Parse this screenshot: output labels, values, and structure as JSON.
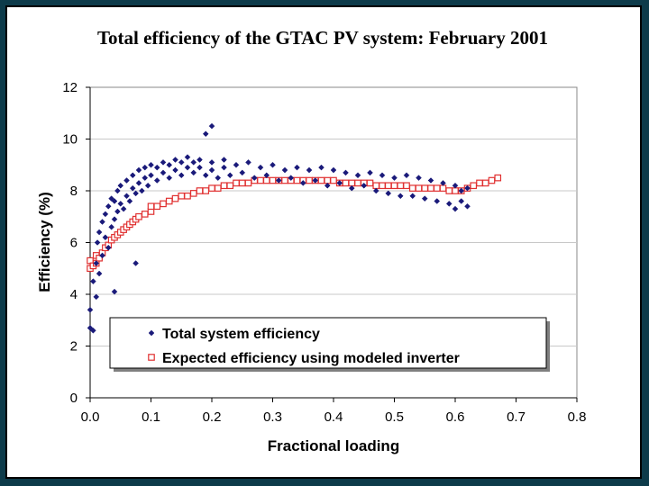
{
  "slide": {
    "title": "Total efficiency of the GTAC PV system:  February 2001"
  },
  "colors": {
    "background": "#0d3b4a",
    "series_total": "#1a1a7a",
    "series_expected_fill": "#ffffff",
    "series_expected_edge": "#e03030",
    "grid": "#c8c8c8"
  },
  "chart_data": {
    "type": "scatter",
    "title": "Total efficiency of the GTAC PV system:  February 2001",
    "xlabel": "Fractional loading",
    "ylabel": "Efficiency (%)",
    "xlim": [
      0.0,
      0.8
    ],
    "ylim": [
      0,
      12
    ],
    "xticks": [
      0.0,
      0.1,
      0.2,
      0.3,
      0.4,
      0.5,
      0.6,
      0.7,
      0.8
    ],
    "yticks": [
      0,
      2,
      4,
      6,
      8,
      10,
      12
    ],
    "xtick_labels": [
      "0.0",
      "0.1",
      "0.2",
      "0.3",
      "0.4",
      "0.5",
      "0.6",
      "0.7",
      "0.8"
    ],
    "ytick_labels": [
      "0",
      "2",
      "4",
      "6",
      "8",
      "10",
      "12"
    ],
    "grid": "horizontal",
    "legend_position": "bottom inside plot",
    "series": [
      {
        "name": "Total system efficiency",
        "marker": "diamond",
        "color": "#1a1a7a",
        "points": [
          [
            0.0,
            2.7
          ],
          [
            0.0,
            3.4
          ],
          [
            0.005,
            2.6
          ],
          [
            0.005,
            4.5
          ],
          [
            0.01,
            3.9
          ],
          [
            0.01,
            5.2
          ],
          [
            0.012,
            6.0
          ],
          [
            0.015,
            4.8
          ],
          [
            0.015,
            6.4
          ],
          [
            0.02,
            5.5
          ],
          [
            0.02,
            6.8
          ],
          [
            0.025,
            6.2
          ],
          [
            0.025,
            7.1
          ],
          [
            0.03,
            5.8
          ],
          [
            0.03,
            7.4
          ],
          [
            0.035,
            6.6
          ],
          [
            0.035,
            7.7
          ],
          [
            0.04,
            6.9
          ],
          [
            0.04,
            7.6
          ],
          [
            0.04,
            4.1
          ],
          [
            0.045,
            7.2
          ],
          [
            0.045,
            8.0
          ],
          [
            0.05,
            7.5
          ],
          [
            0.05,
            8.2
          ],
          [
            0.055,
            7.3
          ],
          [
            0.06,
            7.8
          ],
          [
            0.06,
            8.4
          ],
          [
            0.065,
            7.6
          ],
          [
            0.07,
            8.1
          ],
          [
            0.07,
            8.6
          ],
          [
            0.075,
            5.2
          ],
          [
            0.075,
            7.9
          ],
          [
            0.08,
            8.3
          ],
          [
            0.08,
            8.8
          ],
          [
            0.085,
            8.0
          ],
          [
            0.09,
            8.5
          ],
          [
            0.09,
            8.9
          ],
          [
            0.095,
            8.2
          ],
          [
            0.1,
            8.6
          ],
          [
            0.1,
            9.0
          ],
          [
            0.11,
            8.4
          ],
          [
            0.11,
            8.9
          ],
          [
            0.12,
            8.7
          ],
          [
            0.12,
            9.1
          ],
          [
            0.13,
            8.5
          ],
          [
            0.13,
            9.0
          ],
          [
            0.14,
            8.8
          ],
          [
            0.14,
            9.2
          ],
          [
            0.15,
            8.6
          ],
          [
            0.15,
            9.1
          ],
          [
            0.16,
            8.9
          ],
          [
            0.16,
            9.3
          ],
          [
            0.17,
            8.7
          ],
          [
            0.17,
            9.1
          ],
          [
            0.18,
            8.9
          ],
          [
            0.18,
            9.2
          ],
          [
            0.19,
            8.6
          ],
          [
            0.19,
            10.2
          ],
          [
            0.2,
            8.8
          ],
          [
            0.2,
            9.1
          ],
          [
            0.2,
            10.5
          ],
          [
            0.21,
            8.5
          ],
          [
            0.22,
            8.9
          ],
          [
            0.22,
            9.2
          ],
          [
            0.23,
            8.6
          ],
          [
            0.24,
            9.0
          ],
          [
            0.25,
            8.7
          ],
          [
            0.26,
            9.1
          ],
          [
            0.27,
            8.5
          ],
          [
            0.28,
            8.9
          ],
          [
            0.29,
            8.6
          ],
          [
            0.3,
            9.0
          ],
          [
            0.31,
            8.4
          ],
          [
            0.32,
            8.8
          ],
          [
            0.33,
            8.5
          ],
          [
            0.34,
            8.9
          ],
          [
            0.35,
            8.3
          ],
          [
            0.36,
            8.8
          ],
          [
            0.37,
            8.4
          ],
          [
            0.38,
            8.9
          ],
          [
            0.39,
            8.2
          ],
          [
            0.4,
            8.8
          ],
          [
            0.41,
            8.3
          ],
          [
            0.42,
            8.7
          ],
          [
            0.43,
            8.1
          ],
          [
            0.44,
            8.6
          ],
          [
            0.45,
            8.2
          ],
          [
            0.46,
            8.7
          ],
          [
            0.47,
            8.0
          ],
          [
            0.48,
            8.6
          ],
          [
            0.49,
            7.9
          ],
          [
            0.5,
            8.5
          ],
          [
            0.51,
            7.8
          ],
          [
            0.52,
            8.6
          ],
          [
            0.53,
            7.8
          ],
          [
            0.54,
            8.5
          ],
          [
            0.55,
            7.7
          ],
          [
            0.56,
            8.4
          ],
          [
            0.57,
            7.6
          ],
          [
            0.58,
            8.3
          ],
          [
            0.59,
            7.5
          ],
          [
            0.6,
            8.2
          ],
          [
            0.6,
            7.3
          ],
          [
            0.61,
            7.6
          ],
          [
            0.61,
            8.0
          ],
          [
            0.62,
            7.4
          ],
          [
            0.62,
            8.1
          ]
        ]
      },
      {
        "name": "Expected efficiency using modeled inverter",
        "marker": "open-square",
        "color": "#e03030",
        "points": [
          [
            0.0,
            5.0
          ],
          [
            0.0,
            5.3
          ],
          [
            0.005,
            5.1
          ],
          [
            0.01,
            5.2
          ],
          [
            0.01,
            5.5
          ],
          [
            0.015,
            5.4
          ],
          [
            0.02,
            5.6
          ],
          [
            0.025,
            5.8
          ],
          [
            0.03,
            5.9
          ],
          [
            0.035,
            6.1
          ],
          [
            0.04,
            6.2
          ],
          [
            0.045,
            6.3
          ],
          [
            0.05,
            6.4
          ],
          [
            0.055,
            6.5
          ],
          [
            0.06,
            6.6
          ],
          [
            0.065,
            6.7
          ],
          [
            0.07,
            6.8
          ],
          [
            0.075,
            6.9
          ],
          [
            0.08,
            7.0
          ],
          [
            0.09,
            7.1
          ],
          [
            0.1,
            7.2
          ],
          [
            0.1,
            7.4
          ],
          [
            0.11,
            7.4
          ],
          [
            0.12,
            7.5
          ],
          [
            0.13,
            7.6
          ],
          [
            0.14,
            7.7
          ],
          [
            0.15,
            7.8
          ],
          [
            0.16,
            7.8
          ],
          [
            0.17,
            7.9
          ],
          [
            0.18,
            8.0
          ],
          [
            0.19,
            8.0
          ],
          [
            0.2,
            8.1
          ],
          [
            0.21,
            8.1
          ],
          [
            0.22,
            8.2
          ],
          [
            0.23,
            8.2
          ],
          [
            0.24,
            8.3
          ],
          [
            0.25,
            8.3
          ],
          [
            0.26,
            8.3
          ],
          [
            0.27,
            8.4
          ],
          [
            0.28,
            8.4
          ],
          [
            0.29,
            8.4
          ],
          [
            0.3,
            8.4
          ],
          [
            0.31,
            8.4
          ],
          [
            0.32,
            8.4
          ],
          [
            0.33,
            8.4
          ],
          [
            0.34,
            8.4
          ],
          [
            0.35,
            8.4
          ],
          [
            0.36,
            8.4
          ],
          [
            0.37,
            8.4
          ],
          [
            0.38,
            8.4
          ],
          [
            0.39,
            8.4
          ],
          [
            0.4,
            8.4
          ],
          [
            0.41,
            8.3
          ],
          [
            0.42,
            8.3
          ],
          [
            0.43,
            8.3
          ],
          [
            0.44,
            8.3
          ],
          [
            0.45,
            8.3
          ],
          [
            0.46,
            8.3
          ],
          [
            0.47,
            8.2
          ],
          [
            0.48,
            8.2
          ],
          [
            0.49,
            8.2
          ],
          [
            0.5,
            8.2
          ],
          [
            0.51,
            8.2
          ],
          [
            0.52,
            8.2
          ],
          [
            0.53,
            8.1
          ],
          [
            0.54,
            8.1
          ],
          [
            0.55,
            8.1
          ],
          [
            0.56,
            8.1
          ],
          [
            0.57,
            8.1
          ],
          [
            0.58,
            8.1
          ],
          [
            0.59,
            8.0
          ],
          [
            0.6,
            8.0
          ],
          [
            0.61,
            8.0
          ],
          [
            0.62,
            8.1
          ],
          [
            0.63,
            8.2
          ],
          [
            0.64,
            8.3
          ],
          [
            0.65,
            8.3
          ],
          [
            0.66,
            8.4
          ],
          [
            0.67,
            8.5
          ]
        ]
      }
    ]
  }
}
